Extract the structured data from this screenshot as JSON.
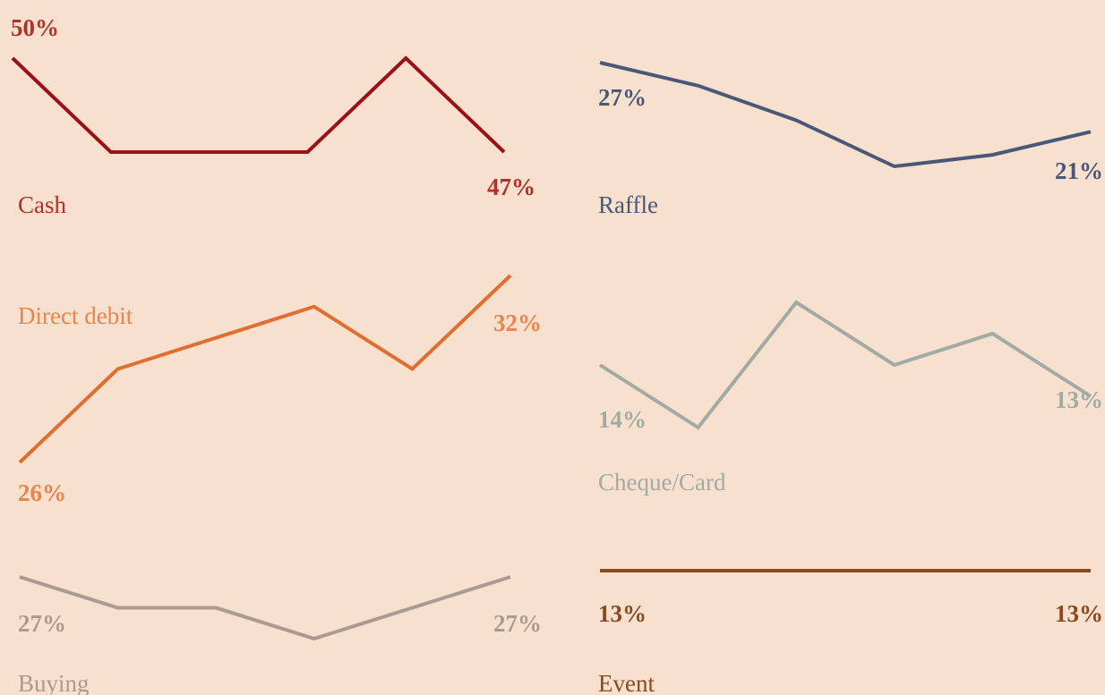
{
  "chart_data": [
    {
      "type": "line",
      "title": "Cash",
      "color": "#9b1016",
      "label_color": "#b0302a",
      "values": [
        50,
        47,
        47,
        47,
        50,
        47
      ],
      "value_labels": [
        "50%",
        null,
        null,
        null,
        null,
        "47%"
      ],
      "ylim": [
        47,
        50
      ]
    },
    {
      "type": "line",
      "title": "Raffle",
      "color": "#4a5878",
      "label_color": "#4a5878",
      "values": [
        27,
        25,
        22,
        18,
        19,
        21
      ],
      "value_labels": [
        "27%",
        null,
        null,
        null,
        null,
        "21%"
      ],
      "ylim": [
        18,
        27
      ]
    },
    {
      "type": "line",
      "title": "Direct debit",
      "color": "#e06e30",
      "label_color": "#e8844c",
      "values": [
        26,
        29,
        30,
        31,
        29,
        32
      ],
      "value_labels": [
        "26%",
        null,
        null,
        null,
        null,
        "32%"
      ],
      "ylim": [
        26,
        32
      ]
    },
    {
      "type": "line",
      "title": "Cheque/Card",
      "color": "#a2aaa4",
      "label_color": "#a2aaa4",
      "values": [
        14,
        12,
        16,
        14,
        15,
        13
      ],
      "value_labels": [
        "14%",
        null,
        null,
        null,
        null,
        "13%"
      ],
      "ylim": [
        12,
        16
      ]
    },
    {
      "type": "line",
      "title": "Buying",
      "color": "#aa9a90",
      "label_color": "#aa9a90",
      "values": [
        27,
        26,
        26,
        25,
        26,
        27
      ],
      "value_labels": [
        "27%",
        null,
        null,
        null,
        null,
        "27%"
      ],
      "ylim": [
        25,
        27
      ]
    },
    {
      "type": "line",
      "title": "Event",
      "color": "#8a4a1e",
      "label_color": "#8a4a1e",
      "values": [
        13,
        13,
        13,
        13,
        13,
        13
      ],
      "value_labels": [
        "13%",
        null,
        null,
        null,
        null,
        "13%"
      ],
      "ylim": [
        12,
        14
      ]
    }
  ]
}
